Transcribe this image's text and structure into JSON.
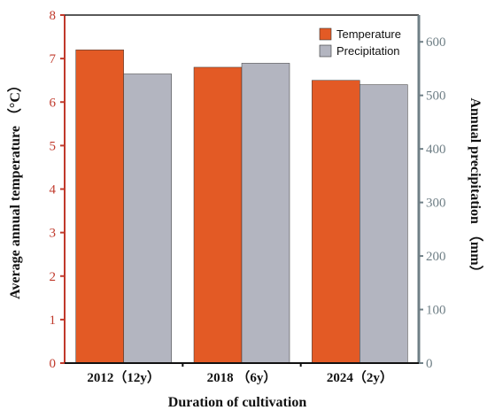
{
  "chart_data": {
    "type": "bar",
    "categories": [
      "2012（12y）",
      "2018 （6y）",
      "2024（2y）"
    ],
    "series": [
      {
        "name": "Temperature",
        "axis": "left",
        "color": "#e35a25",
        "values": [
          7.2,
          6.8,
          6.5
        ]
      },
      {
        "name": "Precipitation",
        "axis": "right",
        "color": "#b3b5c0",
        "values": [
          540,
          560,
          520
        ]
      }
    ],
    "xlabel": "Duration of cultivation",
    "ylabel_left": "Average annual temperature （°C）",
    "ylabel_right": "Annual precipitation （mm）",
    "ylim_left": [
      0,
      8
    ],
    "ylim_right": [
      0,
      650
    ],
    "yticks_left": [
      0,
      1,
      2,
      3,
      4,
      5,
      6,
      7,
      8
    ],
    "yticks_right": [
      0,
      100,
      200,
      300,
      400,
      500,
      600
    ],
    "left_axis_color": "#c0392b",
    "right_axis_color": "#6f7f86",
    "grid": false,
    "legend_position": "top-right"
  }
}
